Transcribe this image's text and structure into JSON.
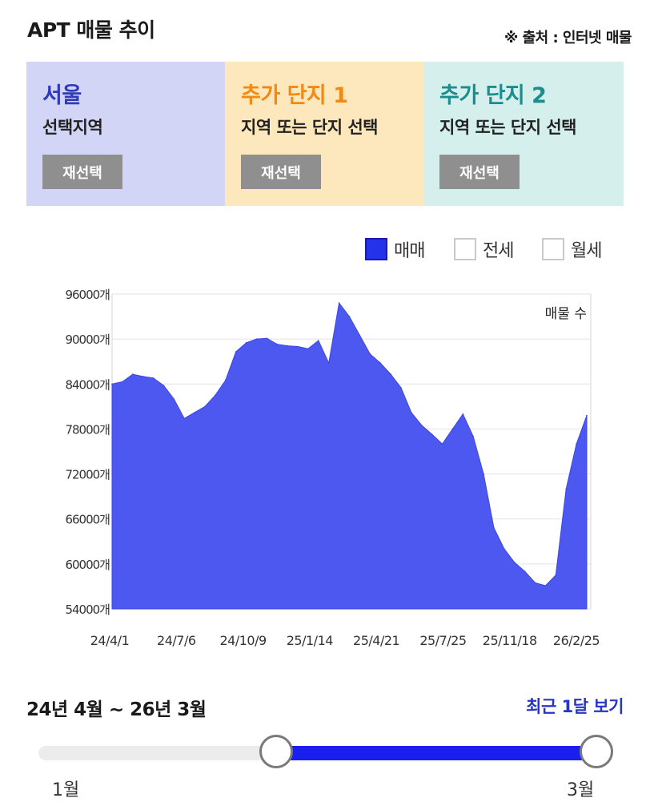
{
  "header": {
    "title": "APT 매물 추이",
    "source": "※ 출처 : 인터넷 매물"
  },
  "panels": [
    {
      "title": "서울",
      "subtitle": "선택지역",
      "button": "재선택",
      "color": "#2f3ab8"
    },
    {
      "title": "추가 단지 1",
      "subtitle": "지역 또는 단지 선택",
      "button": "재선택",
      "color": "#f08a12"
    },
    {
      "title": "추가 단지 2",
      "subtitle": "지역 또는 단지 선택",
      "button": "재선택",
      "color": "#1d8c8c"
    }
  ],
  "legend": [
    {
      "label": "매매",
      "checked": true
    },
    {
      "label": "전세",
      "checked": false
    },
    {
      "label": "월세",
      "checked": false
    }
  ],
  "chart_data": {
    "type": "area",
    "series_label": "매물 수",
    "color": "#4c58f0",
    "ylim": [
      54000,
      96000
    ],
    "yticks": [
      96000,
      90000,
      84000,
      78000,
      72000,
      66000,
      60000,
      54000
    ],
    "y_unit": "개",
    "xticks": [
      "24/4/1",
      "24/7/6",
      "24/10/9",
      "25/1/14",
      "25/4/21",
      "25/7/25",
      "25/11/18",
      "26/2/25"
    ],
    "grid": true,
    "x": [
      "24/4/1",
      "24/4/15",
      "24/5/1",
      "24/5/15",
      "24/6/1",
      "24/6/15",
      "24/7/1",
      "24/7/15",
      "24/8/1",
      "24/8/15",
      "24/9/1",
      "24/9/15",
      "24/10/1",
      "24/10/15",
      "24/11/1",
      "24/11/15",
      "24/12/1",
      "24/12/15",
      "25/1/1",
      "25/1/15",
      "25/2/1",
      "25/2/15",
      "25/3/1",
      "25/3/15",
      "25/4/1",
      "25/4/15",
      "25/5/1",
      "25/5/15",
      "25/6/1",
      "25/6/15",
      "25/7/1",
      "25/7/15",
      "25/8/1",
      "25/8/15",
      "25/9/1",
      "25/9/15",
      "25/10/1",
      "25/10/15",
      "25/11/1",
      "25/11/15",
      "25/12/1",
      "25/12/15",
      "26/1/1",
      "26/1/15",
      "26/2/1",
      "26/2/15",
      "26/3/1"
    ],
    "values": [
      84000,
      84300,
      85300,
      85000,
      84800,
      83800,
      82000,
      79400,
      80200,
      81000,
      82500,
      84500,
      88300,
      89500,
      90000,
      90100,
      89300,
      89100,
      89000,
      88700,
      89800,
      86800,
      94800,
      93000,
      90500,
      88000,
      86800,
      85300,
      83500,
      80200,
      78500,
      77300,
      76000,
      78000,
      80000,
      77000,
      72000,
      64800,
      62000,
      60200,
      59000,
      57500,
      57100,
      58500,
      70000,
      76000,
      79800
    ]
  },
  "range": {
    "label": "24년 4월 ~ 26년 3월",
    "recent_link": "최근 1달 보기",
    "start_label": "1월",
    "end_label": "3월"
  }
}
